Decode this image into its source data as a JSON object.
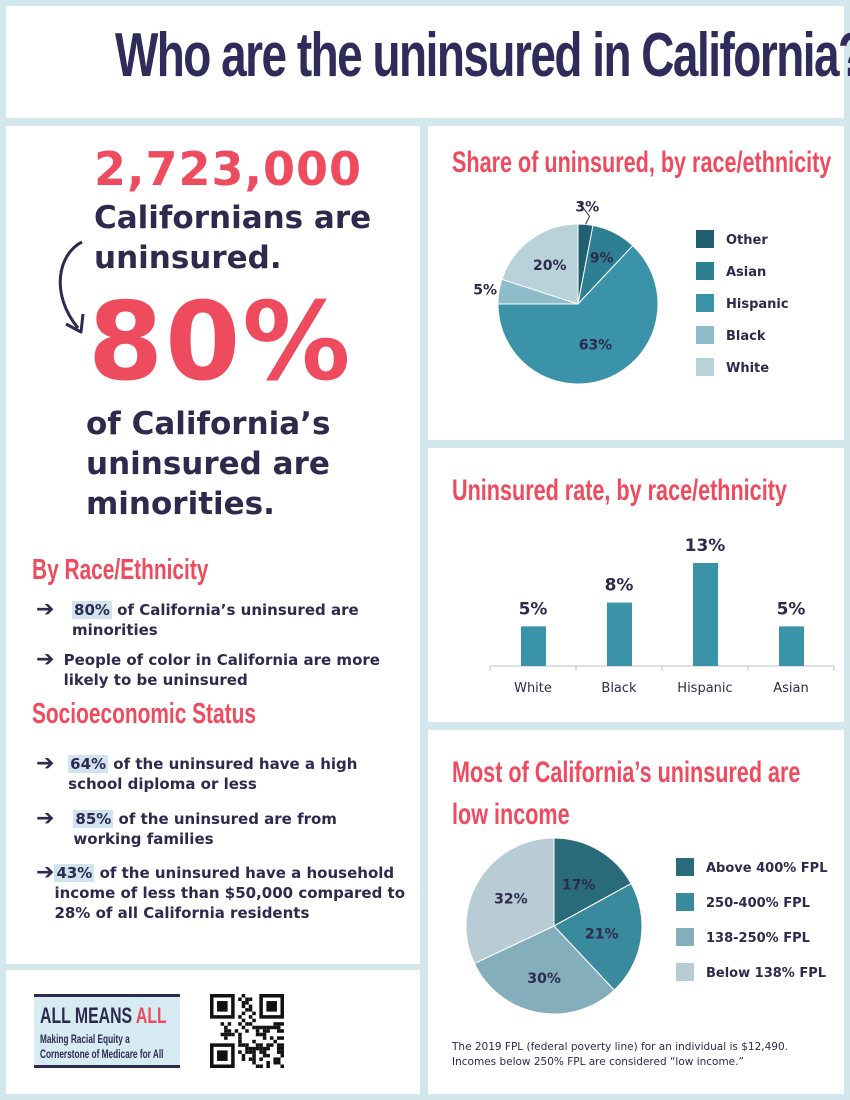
{
  "title": "Who are the uninsured in California?",
  "left": {
    "big_number": "2,723,000",
    "big_caption": "Californians are uninsured.",
    "big_percent": "80%",
    "percent_caption": "of California’s uninsured are minorities.",
    "race_heading": "By Race/Ethnicity",
    "race_bullets": [
      {
        "highlight": "80%",
        "text": " of California’s uninsured are minorities"
      },
      {
        "highlight": "",
        "text": "People of color in California are more likely to be uninsured"
      }
    ],
    "socio_heading": "Socioeconomic Status",
    "socio_bullets": [
      {
        "highlight": "64%",
        "text": " of the uninsured have a high school diploma or less"
      },
      {
        "highlight": "85%",
        "text": " of the uninsured are from working families"
      },
      {
        "highlight": "43%",
        "text": " of the uninsured have a household income of less than $50,000 compared to 28% of all California residents"
      }
    ]
  },
  "logo": {
    "title_part1": "ALL MEANS ",
    "title_part2": "ALL",
    "subtitle": "Making Racial Equity a Cornerstone of Medicare for All"
  },
  "colors": {
    "accent": "#ef4b5f",
    "navy": "#2d2a4e",
    "panel_bg": "#d3e8ec"
  },
  "chart_data": [
    {
      "type": "pie",
      "title": "Share of uninsured, by race/ethnicity",
      "categories": [
        "Other",
        "Asian",
        "Hispanic",
        "Black",
        "White"
      ],
      "values": [
        3,
        9,
        63,
        5,
        20
      ],
      "labels": [
        "3%",
        "9%",
        "63%",
        "5%",
        "20%"
      ],
      "colors": [
        "#1f5f70",
        "#2e7f91",
        "#3a93a8",
        "#8fbccb",
        "#b9d2da"
      ],
      "legend": "right"
    },
    {
      "type": "bar",
      "title": "Uninsured rate, by race/ethnicity",
      "categories": [
        "White",
        "Black",
        "Hispanic",
        "Asian"
      ],
      "values": [
        5,
        8,
        13,
        5
      ],
      "labels": [
        "5%",
        "8%",
        "13%",
        "5%"
      ],
      "color": "#3a93a8",
      "ylim": [
        0,
        13
      ]
    },
    {
      "type": "pie",
      "title": "Most of California’s uninsured are low income",
      "categories": [
        "Above 400% FPL",
        "250-400% FPL",
        "138-250% FPL",
        "Below 138% FPL"
      ],
      "values": [
        17,
        21,
        30,
        32
      ],
      "labels": [
        "17%",
        "21%",
        "30%",
        "32%"
      ],
      "colors": [
        "#2a6b79",
        "#3a8a9e",
        "#85aebc",
        "#b7ccd4"
      ],
      "legend": "right",
      "footnote": "The 2019 FPL (federal poverty line) for an individual is $12,490. Incomes below 250% FPL are considered “low income.”"
    }
  ]
}
